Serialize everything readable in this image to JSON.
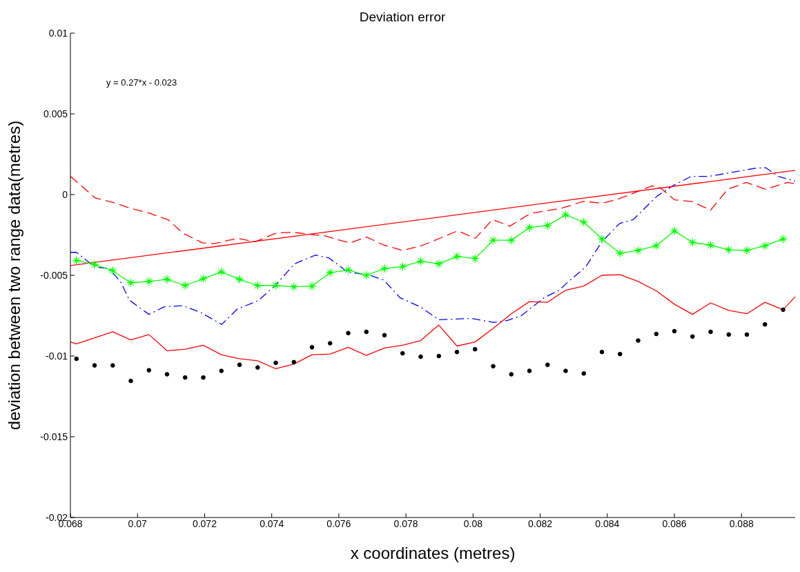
{
  "chart_data": {
    "type": "line",
    "title": "Deviation error",
    "xlabel": "x coordinates (metres)",
    "ylabel": "deviation between two range data(metres)",
    "annotations": [
      "y = 0.27*x - 0.023"
    ],
    "x": [
      0.06818,
      0.06872,
      0.06926,
      0.0698,
      0.07034,
      0.07088,
      0.07142,
      0.07196,
      0.0725,
      0.07304,
      0.07358,
      0.07412,
      0.07466,
      0.0752,
      0.07574,
      0.07628,
      0.07682,
      0.07736,
      0.0779,
      0.07844,
      0.07898,
      0.07952,
      0.08006,
      0.0806,
      0.08114,
      0.08168,
      0.08222,
      0.08276,
      0.0833,
      0.08384,
      0.08438,
      0.08492,
      0.08546,
      0.086,
      0.08654,
      0.08708,
      0.08762,
      0.08816,
      0.0887,
      0.08924
    ],
    "xlim": [
      0.068,
      0.0896
    ],
    "xticks": [
      0.068,
      0.07,
      0.072,
      0.074,
      0.076,
      0.078,
      0.08,
      0.082,
      0.084,
      0.086,
      0.088
    ],
    "ylim": [
      -0.02,
      0.01
    ],
    "yticks": [
      -0.02,
      -0.015,
      -0.01,
      -0.005,
      0,
      0.005,
      0.01
    ],
    "series": [
      {
        "color": "#ff0000",
        "line_style": "dashed",
        "marker": "none",
        "x": [
          0.068,
          0.06874,
          0.06929,
          0.06976,
          0.07038,
          0.07093,
          0.07134,
          0.07195,
          0.07228,
          0.07298,
          0.07351,
          0.07413,
          0.07462,
          0.0753,
          0.07556,
          0.07632,
          0.07683,
          0.07734,
          0.0779,
          0.07851,
          0.07954,
          0.08007,
          0.08058,
          0.08109,
          0.08171,
          0.08267,
          0.08329,
          0.08384,
          0.08431,
          0.08534,
          0.08558,
          0.08601,
          0.0865,
          0.08708,
          0.08759,
          0.08814,
          0.08872,
          0.08937,
          0.0896
        ],
        "values": [
          0.00113,
          -0.00021,
          -0.0005,
          -0.00083,
          -0.00117,
          -0.00158,
          -0.00238,
          -0.003,
          -0.00304,
          -0.00271,
          -0.00292,
          -0.00238,
          -0.00233,
          -0.0025,
          -0.00254,
          -0.003,
          -0.00263,
          -0.00313,
          -0.00346,
          -0.00313,
          -0.00225,
          -0.00271,
          -0.00154,
          -0.00196,
          -0.00117,
          -0.00083,
          -0.00042,
          -0.00054,
          -0.00029,
          0.00054,
          0.00042,
          -0.00033,
          -0.00042,
          -0.00096,
          0.00033,
          0.00075,
          0.00033,
          0.00075,
          0.00067
        ]
      },
      {
        "color": "#0000ff",
        "line_style": "dashdot",
        "marker": "none",
        "x": [
          0.068,
          0.06818,
          0.06874,
          0.06915,
          0.0695,
          0.06976,
          0.07034,
          0.07079,
          0.07134,
          0.07187,
          0.07251,
          0.07298,
          0.07359,
          0.07407,
          0.07468,
          0.0753,
          0.0757,
          0.07626,
          0.07693,
          0.07734,
          0.07782,
          0.07843,
          0.07898,
          0.07995,
          0.08062,
          0.08103,
          0.08144,
          0.08212,
          0.08257,
          0.08282,
          0.08335,
          0.08384,
          0.08437,
          0.08478,
          0.08548,
          0.08595,
          0.0865,
          0.08704,
          0.08773,
          0.08841,
          0.08872,
          0.08909,
          0.0896
        ],
        "values": [
          -0.00358,
          -0.00358,
          -0.0045,
          -0.00458,
          -0.00542,
          -0.00654,
          -0.00742,
          -0.00696,
          -0.00688,
          -0.00729,
          -0.00804,
          -0.00708,
          -0.00658,
          -0.00571,
          -0.00429,
          -0.00375,
          -0.00392,
          -0.00479,
          -0.005,
          -0.00529,
          -0.00638,
          -0.00696,
          -0.00775,
          -0.00767,
          -0.00792,
          -0.00779,
          -0.0075,
          -0.00638,
          -0.00592,
          -0.00542,
          -0.0045,
          -0.00292,
          -0.00179,
          -0.00154,
          -0.0001,
          0.00054,
          0.00113,
          0.00113,
          0.00138,
          0.00163,
          0.00167,
          0.00113,
          0.00083
        ]
      },
      {
        "color": "#ff0000",
        "line_style": "solid",
        "marker": "none",
        "x": [
          0.068,
          0.0896
        ],
        "values": [
          -0.0044,
          0.0015
        ]
      },
      {
        "color": "#00ff00",
        "line_style": "solid",
        "marker": "star",
        "values": [
          -0.00408,
          -0.00433,
          -0.00471,
          -0.00546,
          -0.00538,
          -0.00525,
          -0.00563,
          -0.00521,
          -0.00479,
          -0.00525,
          -0.00563,
          -0.00563,
          -0.00571,
          -0.00567,
          -0.00483,
          -0.00467,
          -0.005,
          -0.00458,
          -0.00446,
          -0.00413,
          -0.00429,
          -0.00383,
          -0.00396,
          -0.00283,
          -0.00283,
          -0.00204,
          -0.00192,
          -0.00125,
          -0.00171,
          -0.00275,
          -0.00363,
          -0.00346,
          -0.00317,
          -0.00225,
          -0.00296,
          -0.00313,
          -0.00342,
          -0.00346,
          -0.00317,
          -0.00275
        ]
      },
      {
        "color": "#ff0000",
        "line_style": "solid",
        "marker": "none",
        "x": [
          0.068,
          0.06818,
          0.06926,
          0.0698,
          0.07034,
          0.07088,
          0.07142,
          0.07196,
          0.0725,
          0.07304,
          0.07358,
          0.07412,
          0.07466,
          0.0752,
          0.07574,
          0.07628,
          0.07682,
          0.07736,
          0.0779,
          0.07844,
          0.07898,
          0.07952,
          0.08006,
          0.0806,
          0.08114,
          0.08168,
          0.08222,
          0.08276,
          0.0833,
          0.08384,
          0.08438,
          0.08492,
          0.08546,
          0.086,
          0.08654,
          0.08708,
          0.08762,
          0.08816,
          0.0887,
          0.08924,
          0.0896
        ],
        "values": [
          -0.00913,
          -0.00925,
          -0.0085,
          -0.009,
          -0.00867,
          -0.00967,
          -0.00958,
          -0.00933,
          -0.00992,
          -0.01017,
          -0.01029,
          -0.01079,
          -0.0105,
          -0.00992,
          -0.00988,
          -0.00946,
          -0.00996,
          -0.0095,
          -0.00933,
          -0.00904,
          -0.00808,
          -0.00938,
          -0.00913,
          -0.00829,
          -0.00738,
          -0.00663,
          -0.00667,
          -0.00592,
          -0.00567,
          -0.005,
          -0.00496,
          -0.00538,
          -0.00596,
          -0.00679,
          -0.00742,
          -0.00671,
          -0.00717,
          -0.00738,
          -0.00667,
          -0.00713,
          -0.00633
        ]
      },
      {
        "type": "scatter",
        "color": "#000000",
        "marker": "circle",
        "values": [
          -0.01017,
          -0.01058,
          -0.01058,
          -0.01154,
          -0.01088,
          -0.01113,
          -0.01133,
          -0.01133,
          -0.01092,
          -0.01054,
          -0.01071,
          -0.01042,
          -0.01038,
          -0.00946,
          -0.00921,
          -0.00858,
          -0.0085,
          -0.00871,
          -0.00983,
          -0.01004,
          -0.01,
          -0.00975,
          -0.00958,
          -0.01063,
          -0.01113,
          -0.01092,
          -0.01054,
          -0.01092,
          -0.01108,
          -0.00975,
          -0.00988,
          -0.00904,
          -0.00863,
          -0.00846,
          -0.00879,
          -0.0085,
          -0.00867,
          -0.00867,
          -0.00804,
          -0.00713
        ]
      }
    ]
  }
}
